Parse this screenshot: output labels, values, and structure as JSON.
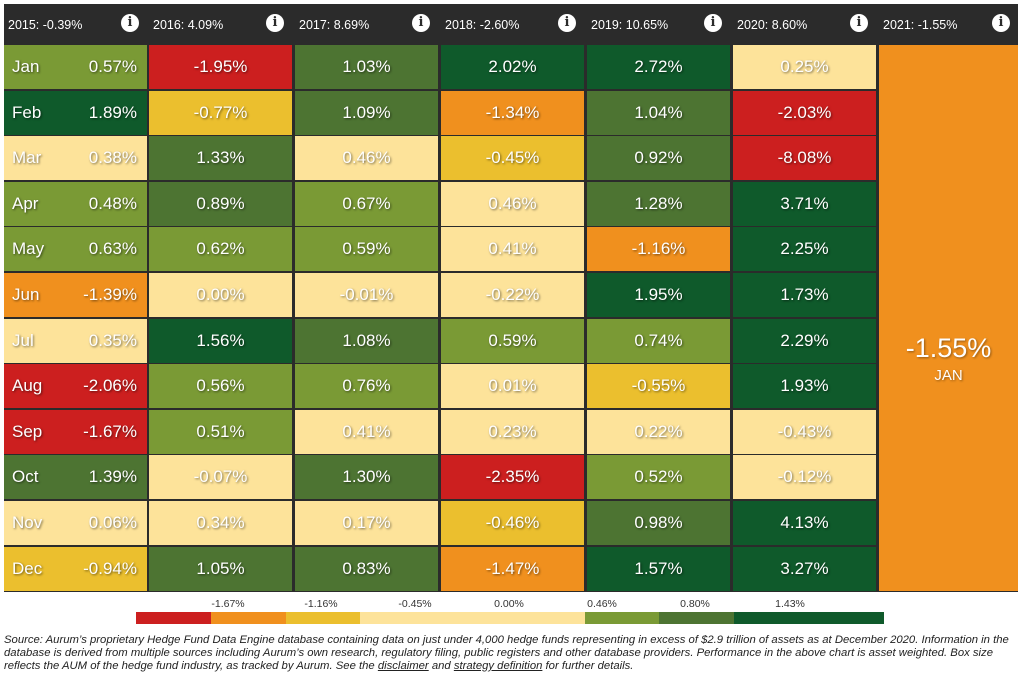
{
  "colors": {
    "red": "#cc1f1f",
    "orange": "#f0901e",
    "gold": "#ebbf2e",
    "light": "#fde39a",
    "lightgreen": "#7a9a35",
    "green": "#4d7432",
    "darkgreen": "#0f5a2b",
    "header_bg": "#2b2b2b"
  },
  "months": [
    "Jan",
    "Feb",
    "Mar",
    "Apr",
    "May",
    "Jun",
    "Jul",
    "Aug",
    "Sep",
    "Oct",
    "Nov",
    "Dec"
  ],
  "chart_data": {
    "type": "heatmap",
    "title": "",
    "columns": [
      {
        "header": "2015: -0.39%",
        "year": 2015,
        "values": [
          "0.57%",
          "1.89%",
          "0.38%",
          "0.48%",
          "0.63%",
          "-1.39%",
          "0.35%",
          "-2.06%",
          "-1.67%",
          "1.39%",
          "0.06%",
          "-0.94%"
        ]
      },
      {
        "header": "2016: 4.09%",
        "year": 2016,
        "values": [
          "-1.95%",
          "-0.77%",
          "1.33%",
          "0.89%",
          "0.62%",
          "0.00%",
          "1.56%",
          "0.56%",
          "0.51%",
          "-0.07%",
          "0.34%",
          "1.05%"
        ]
      },
      {
        "header": "2017: 8.69%",
        "year": 2017,
        "values": [
          "1.03%",
          "1.09%",
          "0.46%",
          "0.67%",
          "0.59%",
          "-0.01%",
          "1.08%",
          "0.76%",
          "0.41%",
          "1.30%",
          "0.17%",
          "0.83%"
        ]
      },
      {
        "header": "2018: -2.60%",
        "year": 2018,
        "values": [
          "2.02%",
          "-1.34%",
          "-0.45%",
          "0.46%",
          "0.41%",
          "-0.22%",
          "0.59%",
          "0.01%",
          "0.23%",
          "-2.35%",
          "-0.46%",
          "-1.47%"
        ]
      },
      {
        "header": "2019: 10.65%",
        "year": 2019,
        "values": [
          "2.72%",
          "1.04%",
          "0.92%",
          "1.28%",
          "-1.16%",
          "1.95%",
          "0.74%",
          "-0.55%",
          "0.22%",
          "0.52%",
          "0.98%",
          "1.57%"
        ]
      },
      {
        "header": "2020: 8.60%",
        "year": 2020,
        "values": [
          "0.25%",
          "-2.03%",
          "-8.08%",
          "3.71%",
          "2.25%",
          "1.73%",
          "2.29%",
          "1.93%",
          "-0.43%",
          "-0.12%",
          "4.13%",
          "3.27%"
        ]
      }
    ],
    "partial_year": {
      "header": "2021: -1.55%",
      "year": 2021,
      "value": "-1.55%",
      "month": "JAN"
    },
    "legend": {
      "thresholds": [
        "-1.67%",
        "-1.16%",
        "-0.45%",
        "0.00%",
        "0.46%",
        "0.80%",
        "1.43%"
      ]
    }
  },
  "source": {
    "text": "Source: Aurum’s proprietary Hedge Fund Data Engine database containing data on just under 4,000 hedge funds representing in excess of $2.9 trillion of assets as at December 2020. Information in the database is derived from multiple sources including Aurum’s own research, regulatory filing, public registers and other database providers. Performance in the above chart is asset weighted. Box size reflects the AUM of the hedge fund industry, as tracked by Aurum. See the ",
    "disclaimer_link": "disclaimer",
    "and": " and ",
    "strategy_link": "strategy definition",
    "tail": " for further details."
  }
}
